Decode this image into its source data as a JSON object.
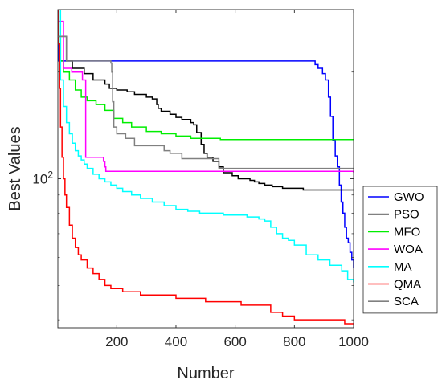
{
  "chart_data": {
    "type": "line",
    "title": "",
    "xlabel": "Number",
    "ylabel": "Best Values",
    "xlim": [
      1,
      1000
    ],
    "ylim": [
      38,
      300
    ],
    "yscale": "log",
    "xticks": [
      200,
      400,
      600,
      800,
      1000
    ],
    "xtick_labels": [
      "200",
      "400",
      "600",
      "800",
      "1000"
    ],
    "yticks": [
      100
    ],
    "ytick_labels": [
      "10^2"
    ],
    "grid": false,
    "legend_position": "right",
    "series": [
      {
        "name": "GWO",
        "color": "#0000ff",
        "x": [
          1,
          4,
          850,
          870,
          880,
          895,
          905,
          915,
          922,
          930,
          938,
          945,
          952,
          958,
          964,
          970,
          976,
          982,
          988,
          994,
          1000
        ],
        "y": [
          296,
          215,
          215,
          210,
          205,
          198,
          190,
          170,
          150,
          128,
          116,
          108,
          96,
          86,
          80,
          73,
          68,
          66,
          62,
          59,
          56
        ]
      },
      {
        "name": "PSO",
        "color": "#000000",
        "x": [
          1,
          30,
          50,
          90,
          120,
          160,
          175,
          200,
          235,
          260,
          300,
          320,
          335,
          340,
          350,
          380,
          400,
          420,
          450,
          460,
          470,
          485,
          495,
          505,
          525,
          545,
          560,
          590,
          610,
          625,
          650,
          665,
          680,
          700,
          725,
          760,
          790,
          830,
          880,
          940,
          1000
        ],
        "y": [
          252,
          215,
          205,
          198,
          190,
          185,
          180,
          178,
          176,
          173,
          170,
          168,
          162,
          158,
          155,
          152,
          149,
          147,
          144,
          142,
          135,
          125,
          118,
          115,
          112,
          108,
          104,
          102,
          100,
          100,
          99,
          98,
          97,
          96,
          95,
          94,
          94,
          93,
          93,
          93,
          93
        ]
      },
      {
        "name": "MFO",
        "color": "#00ee00",
        "x": [
          1,
          10,
          20,
          40,
          60,
          80,
          100,
          130,
          160,
          190,
          220,
          250,
          300,
          350,
          400,
          450,
          500,
          550,
          600,
          700,
          800,
          900,
          1000
        ],
        "y": [
          252,
          215,
          200,
          190,
          178,
          170,
          166,
          162,
          156,
          148,
          144,
          140,
          136,
          134,
          132,
          130,
          130,
          129,
          129,
          129,
          129,
          129,
          129
        ]
      },
      {
        "name": "WOA",
        "color": "#ff00ff",
        "x": [
          1,
          20,
          45,
          48,
          80,
          84,
          88,
          95,
          150,
          155,
          160,
          163,
          300,
          500,
          700,
          800,
          1000
        ],
        "y": [
          278,
          205,
          205,
          200,
          200,
          190,
          190,
          115,
          115,
          112,
          108,
          105,
          105,
          105,
          105,
          105,
          104
        ]
      },
      {
        "name": "MA",
        "color": "#00ffff",
        "x": [
          1,
          10,
          20,
          30,
          40,
          50,
          60,
          70,
          80,
          90,
          100,
          120,
          140,
          160,
          180,
          200,
          220,
          250,
          280,
          320,
          360,
          400,
          440,
          480,
          520,
          560,
          600,
          640,
          680,
          700,
          720,
          740,
          760,
          780,
          800,
          840,
          880,
          920,
          960,
          980,
          1000
        ],
        "y": [
          300,
          190,
          160,
          144,
          134,
          126,
          120,
          116,
          113,
          110,
          107,
          103,
          100,
          98,
          96,
          94,
          92,
          90,
          88,
          86,
          84,
          82,
          81,
          80,
          80,
          79,
          79,
          78,
          77,
          76,
          73,
          70,
          68,
          67,
          65,
          61,
          59,
          57,
          55,
          52,
          51
        ]
      },
      {
        "name": "QMA",
        "color": "#ff0000",
        "x": [
          1,
          4,
          7,
          10,
          15,
          20,
          25,
          30,
          40,
          50,
          60,
          70,
          80,
          100,
          120,
          140,
          160,
          180,
          200,
          220,
          250,
          280,
          320,
          360,
          400,
          450,
          500,
          560,
          620,
          680,
          700,
          720,
          760,
          800,
          830,
          860,
          900,
          940,
          970,
          1000
        ],
        "y": [
          300,
          240,
          180,
          140,
          115,
          100,
          90,
          83,
          74,
          68,
          64,
          61,
          59,
          56,
          54,
          52,
          50,
          49,
          49,
          48,
          48,
          47,
          47,
          47,
          46,
          46,
          45,
          45,
          44,
          44,
          44,
          42,
          41,
          40,
          40,
          40,
          40,
          40,
          39,
          39
        ]
      },
      {
        "name": "SCA",
        "color": "#808080",
        "x": [
          1,
          30,
          170,
          180,
          183,
          186,
          190,
          200,
          230,
          260,
          300,
          330,
          360,
          380,
          400,
          420,
          440,
          460,
          480,
          520,
          540,
          545,
          600,
          800,
          1000
        ],
        "y": [
          252,
          215,
          215,
          212,
          200,
          165,
          140,
          134,
          130,
          124,
          124,
          124,
          120,
          118,
          118,
          114,
          114,
          114,
          114,
          114,
          114,
          107,
          107,
          107,
          107
        ]
      }
    ]
  }
}
